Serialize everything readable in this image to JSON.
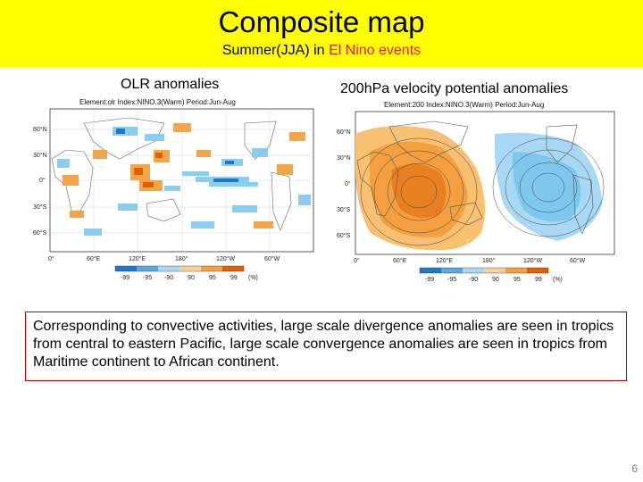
{
  "slide": {
    "title": "Composite map",
    "subtitle_prefix": "Summer(JJA) in ",
    "subtitle_highlight": "El Nino events",
    "page_number": "6",
    "highlight_color": "#e02020",
    "banner_color": "#ffff00"
  },
  "left_panel": {
    "label": "OLR anomalies",
    "header": "Element:olr   Index:NINO.3(Warm)   Period:Jun-Aug",
    "lat_labels": [
      "60°N",
      "30°N",
      "0°",
      "30°S",
      "60°S"
    ],
    "lon_labels": [
      "0°",
      "60°E",
      "120°E",
      "180°",
      "120°W",
      "60°W"
    ],
    "colorbar_labels": [
      "-99",
      "-95",
      "-90",
      "90",
      "95",
      "99",
      "(%)"
    ]
  },
  "right_panel": {
    "label": "200hPa velocity potential anomalies",
    "header": "Element:200   Index:NINO.3(Warm)   Period:Jun-Aug",
    "lat_labels": [
      "60°N",
      "30°N",
      "0°",
      "30°S",
      "60°S"
    ],
    "lon_labels": [
      "0°",
      "60°E",
      "120°E",
      "180°",
      "120°W",
      "60°W"
    ],
    "colorbar_labels": [
      "-99",
      "-95",
      "-90",
      "90",
      "95",
      "99",
      "(%)"
    ]
  },
  "description": "Corresponding to convective activities, large scale divergence anomalies are seen in tropics from central to eastern Pacific, large scale convergence anomalies are seen in tropics from Maritime continent to African continent."
}
